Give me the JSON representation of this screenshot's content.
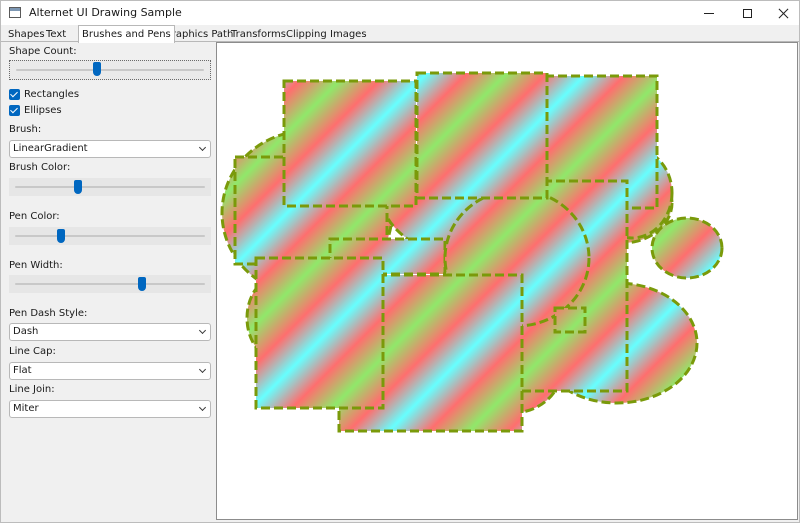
{
  "window": {
    "title": "Alternet UI Drawing Sample"
  },
  "tabs": [
    {
      "label": "Shapes",
      "active": false
    },
    {
      "label": "Text",
      "active": false
    },
    {
      "label": "Brushes and Pens",
      "active": true
    },
    {
      "label": "Graphics Path",
      "active": false
    },
    {
      "label": "Transforms",
      "active": false
    },
    {
      "label": "Clipping",
      "active": false
    },
    {
      "label": "Images",
      "active": false
    }
  ],
  "sidebar": {
    "shape_count": {
      "label": "Shape Count:",
      "value_fraction": 0.43
    },
    "rectangles": {
      "label": "Rectangles",
      "checked": true
    },
    "ellipses": {
      "label": "Ellipses",
      "checked": true
    },
    "brush": {
      "label": "Brush:",
      "value": "LinearGradient"
    },
    "brush_color": {
      "label": "Brush Color:",
      "value_fraction": 0.33
    },
    "pen_color": {
      "label": "Pen Color:",
      "value_fraction": 0.24
    },
    "pen_width": {
      "label": "Pen Width:",
      "value_fraction": 0.67
    },
    "pen_dash_style": {
      "label": "Pen Dash Style:",
      "value": "Dash"
    },
    "line_cap": {
      "label": "Line Cap:",
      "value": "Flat"
    },
    "line_join": {
      "label": "Line Join:",
      "value": "Miter"
    }
  },
  "colors": {
    "accent": "#0067c0",
    "pen": "#7a9a0a",
    "gradient_green": "#90e86a",
    "gradient_red": "#ff6e6e",
    "gradient_cyan": "#66ffff"
  }
}
